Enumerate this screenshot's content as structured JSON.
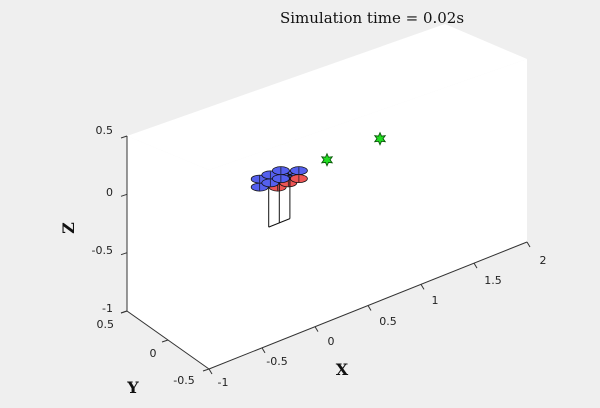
{
  "chart_data": {
    "type": "scatter",
    "title": "Simulation time = 0.02s",
    "xlabel": "X",
    "ylabel": "Y",
    "zlabel": "Z",
    "x_ticks": [
      "-1",
      "-0.5",
      "0",
      "0.5",
      "1",
      "1.5",
      "2"
    ],
    "y_ticks": [
      "-0.5",
      "0",
      "0.5"
    ],
    "z_ticks": [
      "-1",
      "-0.5",
      "0",
      "0.5"
    ],
    "xlim": [
      -1,
      2
    ],
    "ylim": [
      -0.5,
      0.5
    ],
    "zlim": [
      -1,
      0.5
    ],
    "grid": false,
    "legend": "none",
    "series": [
      {
        "marker": "star",
        "color": "#22dd22",
        "points": [
          {
            "x": 0.5,
            "y": 0.0,
            "z": 0.0
          },
          {
            "x": 1.0,
            "y": 0.0,
            "z": 0.0
          }
        ]
      },
      {
        "marker": "quadrotor",
        "rotor_color": "#5560ee",
        "front_rotor_color": "#ee5555",
        "vehicles": [
          {
            "x": -0.05,
            "y": 0.0,
            "z": 0.0
          },
          {
            "x": 0.05,
            "y": 0.0,
            "z": 0.0
          },
          {
            "x": 0.15,
            "y": 0.0,
            "z": 0.0
          }
        ]
      }
    ]
  }
}
